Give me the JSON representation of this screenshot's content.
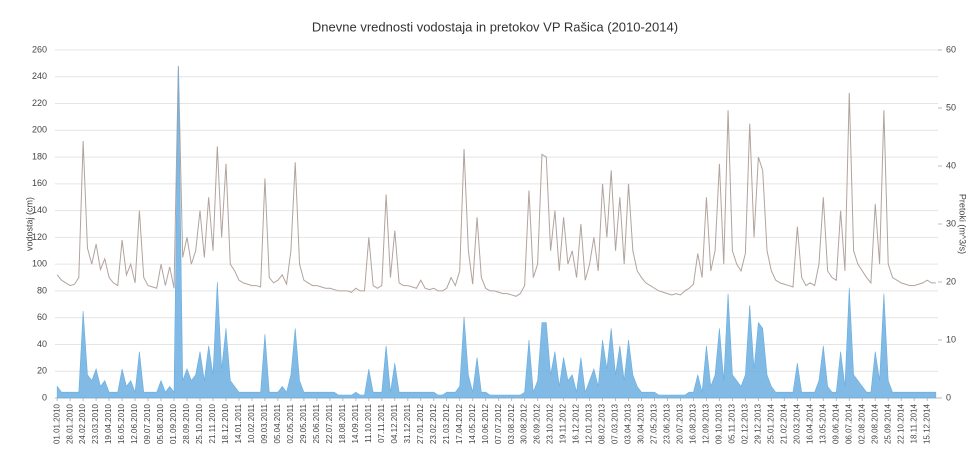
{
  "chart_data": {
    "type": "line",
    "title": "Dnevne vrednosti vodostaja in pretokov VP Rašica (2010-2014)",
    "y_label": "vodostaj (cm)",
    "y2_label": "Pretoki (m^3/s)",
    "grid": true,
    "categories": [
      "01.01.2010",
      null,
      null,
      "28.01.2010",
      null,
      null,
      "24.02.2010",
      null,
      null,
      "23.03.2010",
      null,
      null,
      "19.04.2010",
      null,
      null,
      "16.05.2010",
      null,
      null,
      "12.06.2010",
      null,
      null,
      "09.07.2010",
      null,
      null,
      "05.08.2010",
      null,
      null,
      "01.09.2010",
      null,
      null,
      "28.09.2010",
      null,
      null,
      "25.10.2010",
      null,
      null,
      "21.11.2010",
      null,
      null,
      "18.12.2010",
      null,
      null,
      "14.01.2011",
      null,
      null,
      "10.02.2011",
      null,
      null,
      "09.03.2011",
      null,
      null,
      "05.04.2011",
      null,
      null,
      "02.05.2011",
      null,
      null,
      "29.05.2011",
      null,
      null,
      "25.06.2011",
      null,
      null,
      "22.07.2011",
      null,
      null,
      "18.08.2011",
      null,
      null,
      "14.09.2011",
      null,
      null,
      "11.10.2011",
      null,
      null,
      "07.11.2011",
      null,
      null,
      "04.12.2011",
      null,
      null,
      "31.12.2011",
      null,
      null,
      "27.01.2012",
      null,
      null,
      "23.02.2012",
      null,
      null,
      "21.03.2012",
      null,
      null,
      "17.04.2012",
      null,
      null,
      "14.05.2012",
      null,
      null,
      "10.06.2012",
      null,
      null,
      "07.07.2012",
      null,
      null,
      "03.08.2012",
      null,
      null,
      "30.08.2012",
      null,
      null,
      "26.09.2012",
      null,
      null,
      "23.10.2012",
      null,
      null,
      "19.11.2012",
      null,
      null,
      "16.12.2012",
      null,
      null,
      "12.01.2013",
      null,
      null,
      "08.02.2013",
      null,
      null,
      "07.03.2013",
      null,
      null,
      "03.04.2013",
      null,
      null,
      "30.04.2013",
      null,
      null,
      "27.05.2013",
      null,
      null,
      "23.06.2013",
      null,
      null,
      "20.07.2013",
      null,
      null,
      "16.08.2013",
      null,
      null,
      "12.09.2013",
      null,
      null,
      "09.10.2013",
      null,
      null,
      "05.11.2013",
      null,
      null,
      "02.12.2013",
      null,
      null,
      "29.12.2013",
      null,
      null,
      "25.01.2014",
      null,
      null,
      "21.02.2014",
      null,
      null,
      "20.03.2014",
      null,
      null,
      "16.04.2014",
      null,
      null,
      "13.05.2014",
      null,
      null,
      "09.06.2014",
      null,
      null,
      "06.07.2014",
      null,
      null,
      "02.08.2014",
      null,
      null,
      "29.08.2014",
      null,
      null,
      "25.09.2014",
      null,
      null,
      "22.10.2014",
      null,
      null,
      "18.11.2014",
      null,
      null,
      "15.12.2014",
      null,
      null
    ],
    "ylim": [
      0,
      260
    ],
    "yticks": [
      0,
      20,
      40,
      60,
      80,
      100,
      120,
      140,
      160,
      180,
      200,
      220,
      240,
      260
    ],
    "y2lim": [
      0,
      60
    ],
    "y2ticks": [
      0,
      10,
      20,
      30,
      40,
      50,
      60
    ],
    "series": [
      {
        "color": "#b3a39d",
        "style": "line",
        "values": [
          92,
          88,
          86,
          84,
          85,
          90,
          192,
          112,
          100,
          115,
          96,
          104,
          90,
          86,
          84,
          118,
          92,
          100,
          86,
          140,
          90,
          84,
          83,
          82,
          100,
          84,
          98,
          82,
          248,
          105,
          120,
          100,
          110,
          140,
          105,
          150,
          110,
          188,
          120,
          175,
          100,
          95,
          88,
          86,
          85,
          84,
          84,
          83,
          164,
          90,
          86,
          88,
          92,
          85,
          110,
          176,
          100,
          88,
          86,
          84,
          84,
          83,
          82,
          82,
          81,
          80,
          80,
          80,
          79,
          82,
          80,
          80,
          120,
          84,
          82,
          84,
          152,
          90,
          125,
          86,
          84,
          84,
          83,
          82,
          88,
          82,
          81,
          82,
          80,
          80,
          82,
          90,
          84,
          95,
          186,
          110,
          85,
          135,
          90,
          82,
          80,
          80,
          79,
          78,
          78,
          77,
          76,
          78,
          84,
          155,
          90,
          100,
          182,
          180,
          110,
          140,
          95,
          135,
          100,
          110,
          90,
          130,
          88,
          100,
          120,
          95,
          160,
          120,
          170,
          110,
          150,
          100,
          160,
          110,
          95,
          90,
          86,
          84,
          82,
          80,
          79,
          78,
          77,
          78,
          77,
          80,
          82,
          85,
          108,
          90,
          150,
          95,
          110,
          175,
          100,
          215,
          110,
          100,
          95,
          108,
          205,
          120,
          180,
          170,
          110,
          95,
          88,
          86,
          85,
          84,
          83,
          128,
          90,
          84,
          86,
          84,
          100,
          150,
          95,
          90,
          88,
          140,
          95,
          228,
          110,
          100,
          95,
          90,
          86,
          145,
          100,
          215,
          100,
          90,
          88,
          86,
          85,
          84,
          84,
          85,
          86,
          88,
          86,
          86
        ]
      },
      {
        "color": "#6aaee0",
        "style": "area",
        "axis": "y2",
        "values": [
          2,
          1,
          1,
          1,
          1,
          1,
          15,
          4,
          3,
          5,
          2,
          3,
          1,
          1,
          1,
          5,
          2,
          3,
          1,
          8,
          1,
          1,
          1,
          1,
          3,
          1,
          2,
          1,
          57,
          3,
          5,
          3,
          4,
          8,
          3,
          9,
          4,
          20,
          5,
          12,
          3,
          2,
          1,
          1,
          1,
          1,
          1,
          1,
          11,
          1,
          1,
          1,
          2,
          1,
          4,
          12,
          3,
          1,
          1,
          1,
          1,
          1,
          1,
          1,
          1,
          0.5,
          0.5,
          0.5,
          0.5,
          1,
          0.5,
          0.5,
          5,
          1,
          1,
          1,
          9,
          1,
          6,
          1,
          1,
          1,
          1,
          1,
          1,
          1,
          1,
          1,
          0.5,
          0.5,
          1,
          1,
          1,
          2,
          14,
          4,
          1,
          7,
          1,
          1,
          0.5,
          0.5,
          0.5,
          0.5,
          0.5,
          0.5,
          0.5,
          0.5,
          1,
          10,
          1,
          3,
          13,
          13,
          4,
          8,
          2,
          7,
          3,
          4,
          1,
          7,
          1,
          3,
          5,
          2,
          10,
          5,
          12,
          4,
          9,
          3,
          10,
          4,
          2,
          1,
          1,
          1,
          1,
          0.5,
          0.5,
          0.5,
          0.5,
          0.5,
          0.5,
          0.5,
          1,
          1,
          4,
          1,
          9,
          2,
          4,
          12,
          3,
          18,
          4,
          3,
          2,
          4,
          16,
          5,
          13,
          12,
          4,
          2,
          1,
          1,
          1,
          1,
          1,
          6,
          1,
          1,
          1,
          1,
          3,
          9,
          2,
          1,
          1,
          8,
          2,
          19,
          4,
          3,
          2,
          1,
          1,
          8,
          3,
          18,
          3,
          1,
          1,
          1,
          1,
          1,
          1,
          1,
          1,
          1,
          1,
          1
        ]
      }
    ]
  }
}
